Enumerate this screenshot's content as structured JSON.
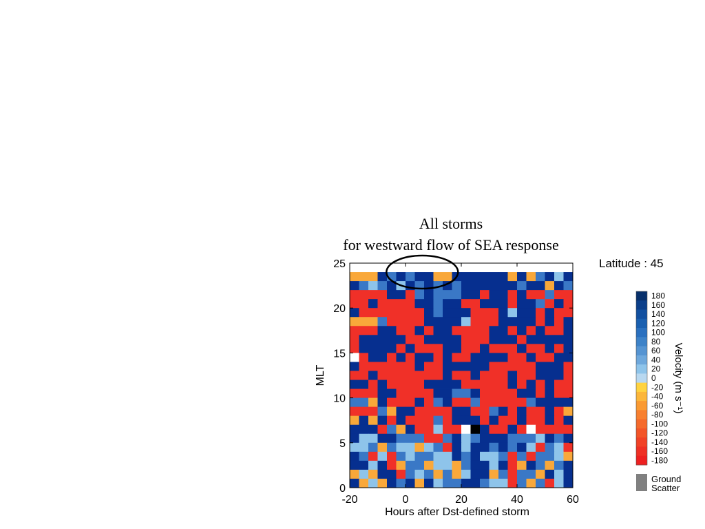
{
  "title_line1": "All storms",
  "title_line2": "for westward flow of SEA response",
  "latitude_label": "Latitude : 45",
  "colorbar": {
    "label": "Velocity (m s⁻¹)",
    "tick_labels": [
      "180",
      "160",
      "140",
      "120",
      "100",
      "80",
      "60",
      "40",
      "20",
      "0",
      "-20",
      "-40",
      "-60",
      "-80",
      "-100",
      "-120",
      "-140",
      "-160",
      "-180"
    ],
    "colors": [
      "#08306b",
      "#0c3f8a",
      "#1250a0",
      "#1a60b0",
      "#2a70bf",
      "#3d82c8",
      "#5594d2",
      "#6ea8dc",
      "#8ec4ea",
      "#b8d8f0",
      "#ffd340",
      "#fcb63a",
      "#fa9a32",
      "#f88030",
      "#f56a2c",
      "#f35528",
      "#f14226",
      "#ef3024",
      "#ee2020"
    ],
    "ground_scatter_label": [
      "Ground",
      "Scatter"
    ],
    "ground_scatter_color": "#808080"
  },
  "chart_data": {
    "type": "heatmap",
    "title": "All storms for westward flow of SEA response",
    "xlabel": "Hours after Dst-defined storm",
    "ylabel": "MLT",
    "xlim": [
      -20,
      60
    ],
    "ylim": [
      0,
      25
    ],
    "xticks": [
      -20,
      0,
      20,
      40,
      60
    ],
    "yticks": [
      0,
      5,
      10,
      15,
      20,
      25
    ],
    "x_bins": 24,
    "y_bins": 24,
    "row_order": "top-to-bottom (first row = MLT 23-24)",
    "legend": {
      "B": "velocity 140 to 180 (dark blue)",
      "M": "velocity 60 to 120 (medium blue)",
      "L": "velocity 0 to 40 (light blue)",
      "O": "velocity -20 to -100 (orange)",
      "R": "velocity -120 to -180 (red)",
      "W": "white / no data",
      "K": "black",
      "G": "ground scatter"
    },
    "grid_rows": [
      "OOOBMBMBBOOBBBBBBOBOMBLB",
      "BMLMBLBMBMBMBBBBBBMBBOBM",
      "RRRRBBRMBMMMBBRBBRBRRMRR",
      "RRBRRRRBBMBBRRBBBRBBMRBR",
      "BRRRRRRRBMBBBRRRBLBBRBRR",
      "OOOMRRRRBBBBLRRRBBBBRBRB",
      "RRRBBRRBRBBRRRRBBRBRBRRB",
      "RBBBBBRRBBBBRRRBBBRBBBBB",
      "RBBBBRBRRRBBRRBRRRBRRBRB",
      "WRBBRBRBBRBRRBBBBRRBRRBB",
      "BRRRRRRBRRBBBBBRRRRRBBBR",
      "RRBRRRRRRRBRRBRRRBRRBBBR",
      "BBRBRRRRBBBBRRRRRBRBRBRR",
      "RRRBBRRRRBBMMBRRRRBBRBRR",
      "MMOBRRRBRMBRRMRRRRRMBBBB",
      "RRRMOBBRRRRBBRRMBRBRRBRO",
      "OBOBRBRRRMRBBBRBRRBRRBRB",
      "BBBRMOBRRLRRWKBRRBRWRRRR",
      "BLLBBMMMRRMBLMBBBMMMLBMB",
      "LLMOMLLOLMRBLBBMBMBLRMLR",
      "BMRLRMLMMLLBMBLLMRMRMMLO",
      "BBLBROMMOLLOMBBLBROBMOMB",
      "OLOBBRMLMOMOLBBOMRMMOBLB",
      "BOLOBMBOBLMMBBMLLRMOMRLB"
    ]
  }
}
